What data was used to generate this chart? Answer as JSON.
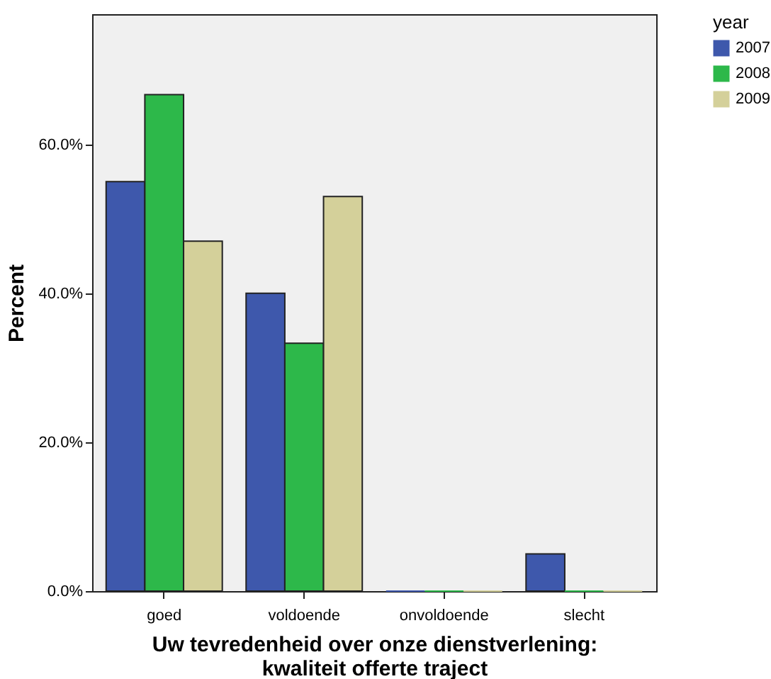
{
  "chart_data": {
    "type": "bar",
    "xlabel": "Uw tevredenheid over onze dienstverlening:\nkwaliteit offerte traject",
    "ylabel": "Percent",
    "legend_title": "year",
    "categories": [
      "goed",
      "voldoende",
      "onvoldoende",
      "slecht"
    ],
    "series": [
      {
        "name": "2007",
        "color": "#3e58ac",
        "values": [
          55.0,
          40.0,
          0,
          5.0
        ]
      },
      {
        "name": "2008",
        "color": "#2db84a",
        "values": [
          66.7,
          33.3,
          0,
          0
        ]
      },
      {
        "name": "2009",
        "color": "#d4d09a",
        "values": [
          47.0,
          53.0,
          0,
          0
        ]
      }
    ],
    "ylim": [
      0,
      77.5
    ],
    "yticks": [
      {
        "value": 0,
        "label": "0.0%"
      },
      {
        "value": 20,
        "label": "20.0%"
      },
      {
        "value": 40,
        "label": "40.0%"
      },
      {
        "value": 60,
        "label": "60.0%"
      }
    ],
    "grid": false,
    "legend": "top right"
  }
}
